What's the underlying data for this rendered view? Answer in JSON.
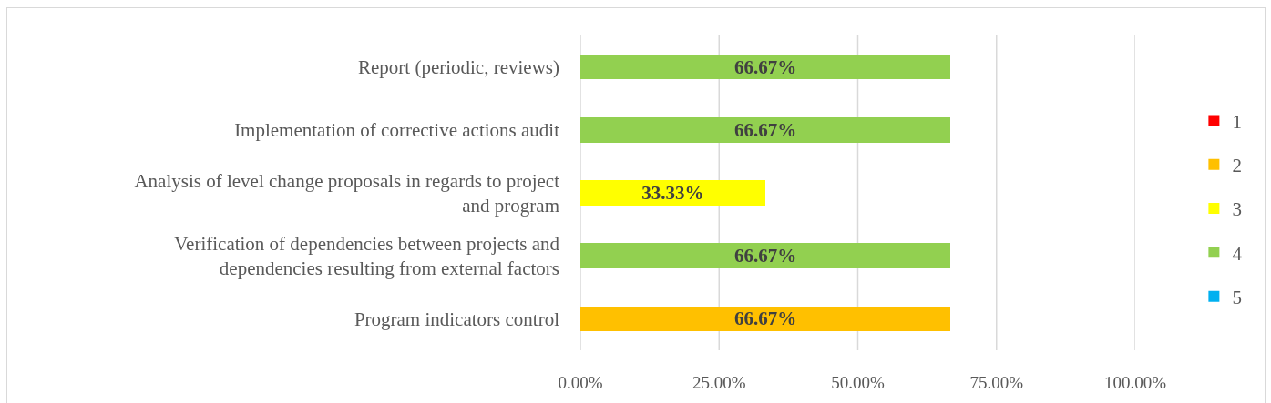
{
  "chart_data": {
    "type": "bar",
    "orientation": "horizontal",
    "stacked": true,
    "categories": [
      "Report (periodic, reviews)",
      "Implementation of corrective actions audit",
      "Analysis of level change proposals in regards to project and program",
      "Verification of dependencies between projects and dependencies resulting from external factors",
      "Program indicators control"
    ],
    "series": [
      {
        "name": "1",
        "color": "#ff0000",
        "values": [
          null,
          null,
          null,
          null,
          null
        ]
      },
      {
        "name": "2",
        "color": "#ffc000",
        "values": [
          null,
          null,
          null,
          null,
          66.67
        ],
        "value_labels": [
          null,
          null,
          null,
          null,
          "66.67%"
        ]
      },
      {
        "name": "3",
        "color": "#ffff00",
        "values": [
          null,
          null,
          33.33,
          null,
          null
        ],
        "value_labels": [
          null,
          null,
          "33.33%",
          null,
          null
        ]
      },
      {
        "name": "4",
        "color": "#92d050",
        "values": [
          66.67,
          66.67,
          null,
          66.67,
          null
        ],
        "value_labels": [
          "66.67%",
          "66.67%",
          null,
          "66.67%",
          null
        ]
      },
      {
        "name": "5",
        "color": "#00b0f0",
        "values": [
          null,
          null,
          null,
          null,
          null
        ]
      }
    ],
    "xlim": [
      0,
      100
    ],
    "xticks": [
      {
        "value": 0,
        "label": "0.00%"
      },
      {
        "value": 25,
        "label": "25.00%"
      },
      {
        "value": 50,
        "label": "50.00%"
      },
      {
        "value": 75,
        "label": "75.00%"
      },
      {
        "value": 100,
        "label": "100.00%"
      }
    ],
    "grid": "x",
    "legend": "right"
  }
}
